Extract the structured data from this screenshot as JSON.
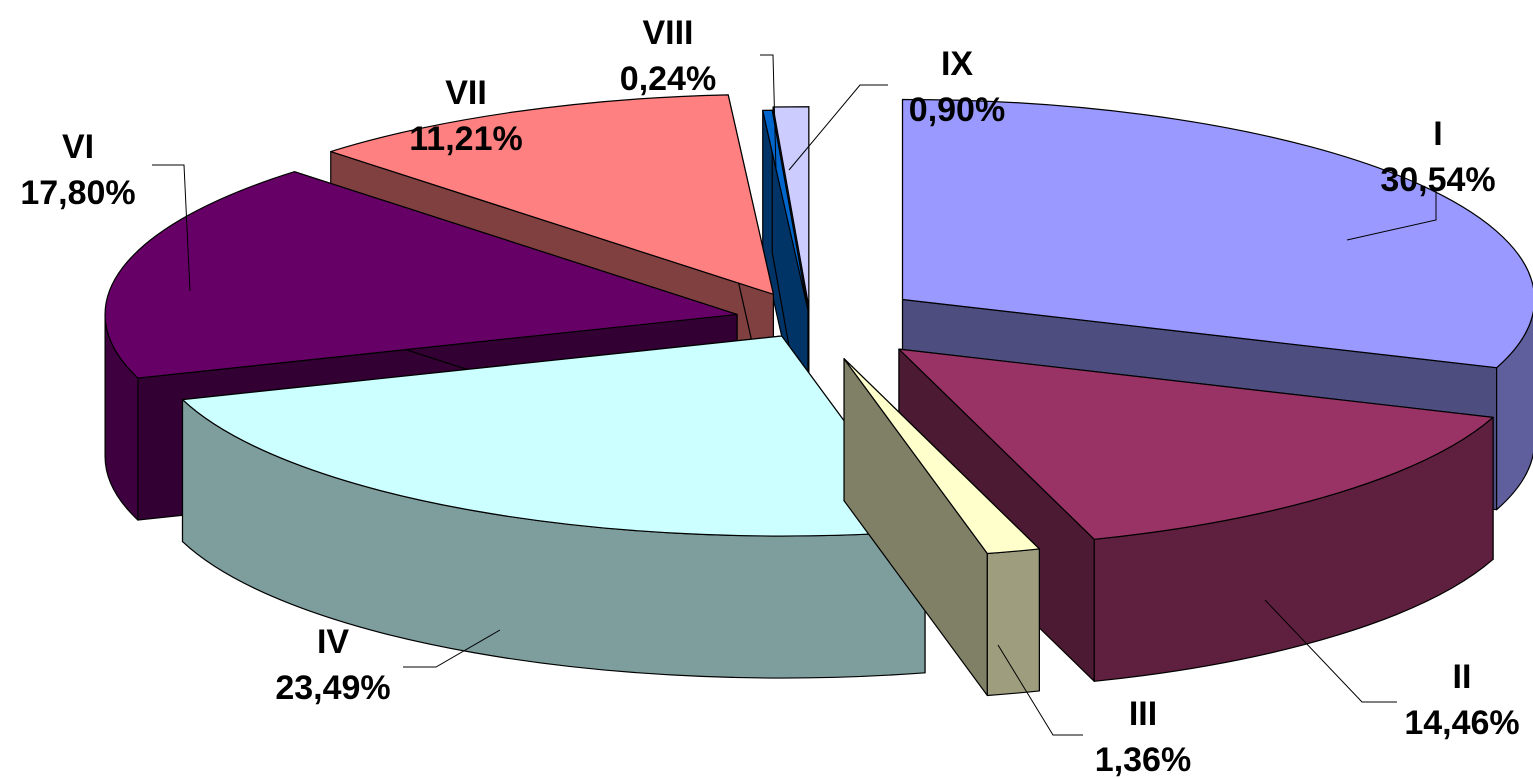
{
  "chart_data": {
    "type": "pie",
    "title": "",
    "three_d": true,
    "exploded": true,
    "legend": "none",
    "slices": [
      {
        "label": "I",
        "value": 30.54,
        "value_label": "30,54%",
        "color": "#9999ff"
      },
      {
        "label": "II",
        "value": 14.46,
        "value_label": "14,46%",
        "color": "#993366"
      },
      {
        "label": "III",
        "value": 1.36,
        "value_label": "1,36%",
        "color": "#ffffcc"
      },
      {
        "label": "IV",
        "value": 23.49,
        "value_label": "23,49%",
        "color": "#ccffff"
      },
      {
        "label": "VI",
        "value": 17.8,
        "value_label": "17,80%",
        "color": "#660066"
      },
      {
        "label": "VII",
        "value": 11.21,
        "value_label": "11,21%",
        "color": "#ff8080"
      },
      {
        "label": "VIII",
        "value": 0.24,
        "value_label": "0,24%",
        "color": "#0066cc"
      },
      {
        "label": "IX",
        "value": 0.9,
        "value_label": "0,90%",
        "color": "#ccccff"
      }
    ]
  }
}
